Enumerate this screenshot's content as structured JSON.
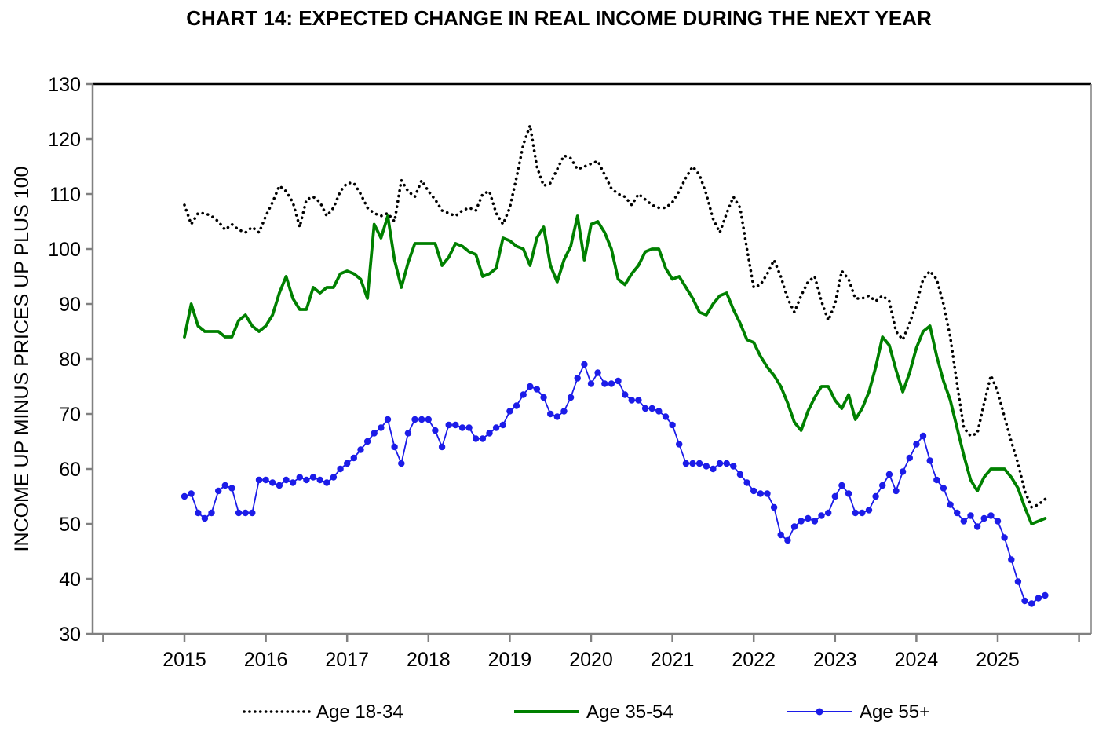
{
  "title": "CHART 14: EXPECTED CHANGE IN REAL INCOME DURING THE NEXT YEAR",
  "chart_data": {
    "type": "line",
    "title": "CHART 14: EXPECTED CHANGE IN REAL INCOME DURING THE NEXT YEAR",
    "xlabel": "",
    "ylabel": "INCOME UP MINUS PRICES UP PLUS 100",
    "ylim": [
      30,
      130
    ],
    "y_ticks": [
      30,
      40,
      50,
      60,
      70,
      80,
      90,
      100,
      110,
      120,
      130
    ],
    "x_tick_years": [
      2015,
      2016,
      2017,
      2018,
      2019,
      2020,
      2021,
      2022,
      2023,
      2024,
      2025
    ],
    "x_start_month": "2015-01",
    "x_frequency": "monthly",
    "grid": "off",
    "legend_position": "bottom",
    "frame_color": "#808080",
    "top_frame_color": "#000000",
    "series": [
      {
        "name": "Age 18-34",
        "color": "#000000",
        "style": "dotted",
        "values": [
          108,
          104.5,
          106.5,
          106.5,
          106,
          105,
          103.5,
          104.5,
          103.5,
          103,
          104,
          103,
          106,
          108.5,
          111.5,
          110.5,
          108.5,
          104,
          109,
          109.5,
          108.5,
          106,
          107.5,
          110.5,
          112,
          112,
          110,
          107.5,
          106.5,
          106,
          106.5,
          105,
          112.5,
          110.5,
          109.5,
          112.5,
          110.5,
          109,
          107,
          106.5,
          106,
          107,
          107.5,
          107,
          110,
          110.5,
          106.5,
          104.5,
          107.5,
          113,
          119,
          122.5,
          115,
          111.5,
          112,
          114.5,
          117,
          116.5,
          114.5,
          115,
          115.5,
          116,
          113.5,
          111,
          110,
          109.5,
          108,
          110,
          109,
          108,
          107.5,
          107.5,
          108.5,
          110.5,
          113,
          115,
          113.5,
          110,
          105.5,
          103,
          106.5,
          109.5,
          107.5,
          100,
          93,
          93.5,
          95.5,
          98,
          95,
          91,
          88.5,
          91.5,
          94,
          95,
          90.5,
          87,
          90,
          96,
          94.5,
          91,
          91,
          91.5,
          90.5,
          91.5,
          90.5,
          85,
          83.5,
          86.5,
          90,
          94.5,
          96,
          94.5,
          90,
          84,
          75.5,
          67.5,
          66,
          66.5,
          72,
          77,
          74,
          69.5,
          65,
          61,
          56,
          53,
          53.5,
          54.5
        ]
      },
      {
        "name": "Age 35-54",
        "color": "#008000",
        "style": "solid",
        "values": [
          84,
          90,
          86,
          85,
          85,
          85,
          84,
          84,
          87,
          88,
          86,
          85,
          86,
          88,
          92,
          95,
          91,
          89,
          89,
          93,
          92,
          93,
          93,
          95.5,
          96,
          95.5,
          94.5,
          91,
          104.5,
          102,
          106,
          98,
          93,
          97.5,
          101,
          101,
          101,
          101,
          97,
          98.5,
          101,
          100.5,
          99.5,
          99,
          95,
          95.5,
          96.5,
          102,
          101.5,
          100.5,
          100,
          97,
          102,
          104,
          97,
          94,
          98,
          100.5,
          106,
          98,
          104.5,
          105,
          103,
          100,
          94.5,
          93.5,
          95.5,
          97,
          99.5,
          100,
          100,
          96.5,
          94.5,
          95,
          93,
          91,
          88.5,
          88,
          90,
          91.5,
          92,
          89,
          86.5,
          83.5,
          83,
          80.5,
          78.5,
          77,
          75,
          72,
          68.5,
          67,
          70.5,
          73,
          75,
          75,
          72.5,
          71,
          73.5,
          69,
          71,
          74,
          78.5,
          84,
          82.5,
          78,
          74,
          77.5,
          82,
          85,
          86,
          80.5,
          76,
          72.5,
          67.5,
          62.5,
          58,
          56,
          58.5,
          60,
          60,
          60,
          58.5,
          56.5,
          53,
          50,
          50.5,
          51
        ]
      },
      {
        "name": "Age 55+",
        "color": "#1c1ce8",
        "style": "line-markers",
        "values": [
          55,
          55.5,
          52,
          51,
          52,
          56,
          57,
          56.5,
          52,
          52,
          52,
          58,
          58,
          57.5,
          57,
          58,
          57.5,
          58.5,
          58,
          58.5,
          58,
          57.5,
          58.5,
          60,
          61,
          62,
          63.5,
          65,
          66.5,
          67.5,
          69,
          64,
          61,
          66.5,
          69,
          69,
          69,
          67,
          64,
          68,
          68,
          67.5,
          67.5,
          65.5,
          65.5,
          66.5,
          67.5,
          68,
          70.5,
          71.5,
          73.5,
          75,
          74.5,
          73,
          70,
          69.5,
          70.5,
          73,
          76.5,
          79,
          75.5,
          77.5,
          75.5,
          75.5,
          76,
          73.5,
          72.5,
          72.5,
          71,
          71,
          70.5,
          69.5,
          68,
          64.5,
          61,
          61,
          61,
          60.5,
          60,
          61,
          61,
          60.5,
          59,
          57.5,
          56,
          55.5,
          55.5,
          53,
          48,
          47,
          49.5,
          50.5,
          51,
          50.5,
          51.5,
          52,
          55,
          57,
          55.5,
          52,
          52,
          52.5,
          55,
          57,
          59,
          56,
          59.5,
          62,
          64.5,
          66,
          61.5,
          58,
          56.5,
          53.5,
          52,
          50.5,
          51.5,
          49.5,
          51,
          51.5,
          50.5,
          47.5,
          43.5,
          39.5,
          36,
          35.5,
          36.5,
          37
        ]
      }
    ]
  }
}
